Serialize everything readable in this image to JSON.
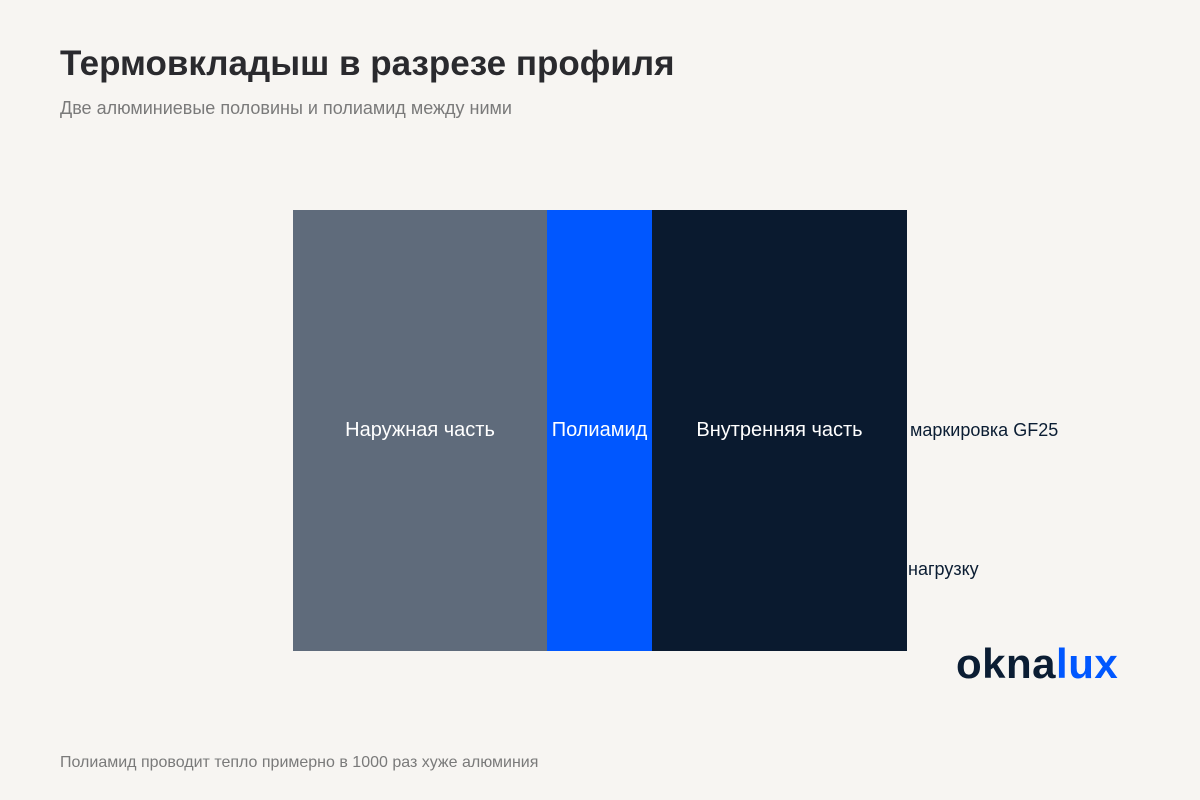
{
  "header": {
    "title": "Термовкладыш в разрезе профиля",
    "subtitle": "Две алюминиевые половины и полиамид между ними"
  },
  "diagram": {
    "sections": [
      {
        "label": "Наружная часть",
        "color": "#5f6b7b"
      },
      {
        "label": "Полиамид",
        "color": "#0057ff"
      },
      {
        "label": "Внутренняя часть",
        "color": "#0a1a2f"
      }
    ],
    "callouts": [
      {
        "text": ", маркировка GF25"
      },
      {
        "text": "нагрузку"
      }
    ]
  },
  "logo": {
    "part1": "okna",
    "part2": "lux",
    "colors": [
      "#0b1d33",
      "#0057ff"
    ]
  },
  "footer": {
    "note": "Полиамид проводит тепло примерно в 1000 раз хуже алюминия"
  }
}
